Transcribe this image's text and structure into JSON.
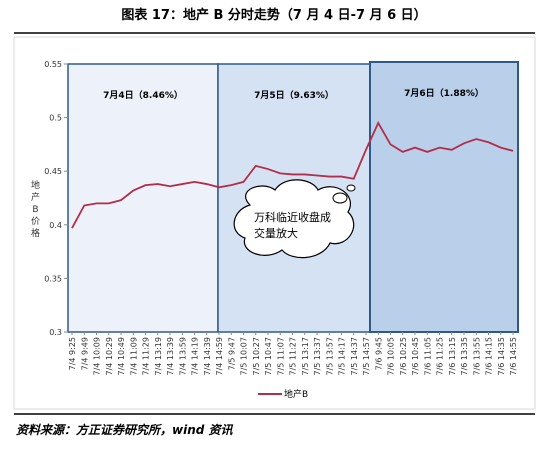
{
  "chart_data": {
    "type": "line",
    "title": "图表 17：地产 B 分时走势（7 月 4 日-7 月 6 日）",
    "y_label": "地产B价格",
    "categories": [
      "7/4 9:25",
      "7/4 9:49",
      "7/4 10:09",
      "7/4 10:29",
      "7/4 10:49",
      "7/4 11:09",
      "7/4 11:29",
      "7/4 13:19",
      "7/4 13:39",
      "7/4 13:59",
      "7/4 14:19",
      "7/4 14:39",
      "7/4 14:59",
      "7/5 9:47",
      "7/5 10:07",
      "7/5 10:27",
      "7/5 10:47",
      "7/5 11:07",
      "7/5 11:27",
      "7/5 13:17",
      "7/5 13:37",
      "7/5 13:57",
      "7/5 14:17",
      "7/5 14:37",
      "7/5 14:57",
      "7/6 9:45",
      "7/6 10:05",
      "7/6 10:25",
      "7/6 10:45",
      "7/6 11:05",
      "7/6 11:25",
      "7/6 13:15",
      "7/6 13:35",
      "7/6 13:55",
      "7/6 14:15",
      "7/6 14:35",
      "7/6 14:55"
    ],
    "series": [
      {
        "name": "地产B",
        "color": "#b22e48",
        "values": [
          0.397,
          0.418,
          0.42,
          0.42,
          0.423,
          0.432,
          0.437,
          0.438,
          0.436,
          0.438,
          0.44,
          0.438,
          0.435,
          0.437,
          0.44,
          0.455,
          0.452,
          0.448,
          0.447,
          0.447,
          0.446,
          0.445,
          0.445,
          0.443,
          0.47,
          0.495,
          0.475,
          0.468,
          0.472,
          0.468,
          0.472,
          0.47,
          0.476,
          0.48,
          0.477,
          0.472,
          0.469
        ]
      }
    ],
    "ylim": [
      0.3,
      0.55
    ],
    "yticks": [
      0.3,
      0.35,
      0.4,
      0.45,
      0.5,
      0.55
    ],
    "panel_labels": [
      "7月4日（8.46%）",
      "7月5日（9.63%）",
      "7月6日（1.88%）"
    ],
    "callout": "万科临近收盘成交量放大"
  },
  "source": "资料来源：方正证券研究所，wind 资讯"
}
